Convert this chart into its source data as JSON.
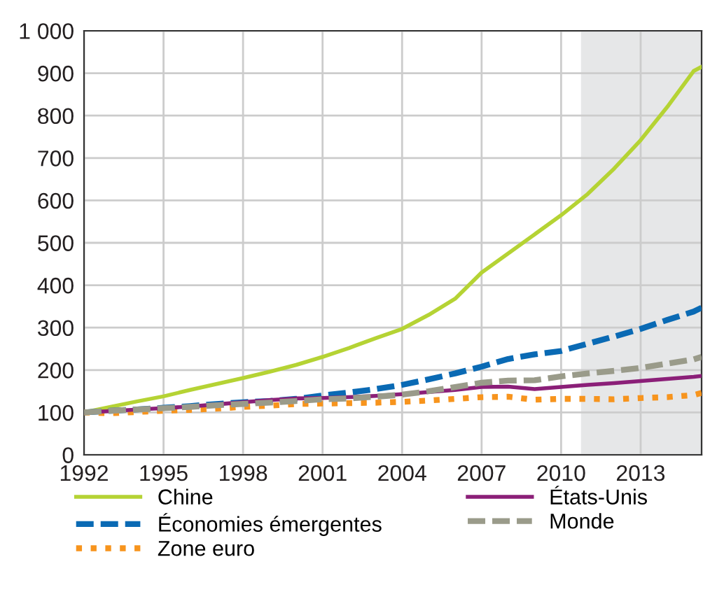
{
  "chart_data": {
    "type": "line",
    "x": [
      1992,
      1993,
      1994,
      1995,
      1996,
      1997,
      1998,
      1999,
      2000,
      2001,
      2002,
      2003,
      2004,
      2005,
      2006,
      2007,
      2008,
      2009,
      2010,
      2011,
      2012,
      2013,
      2014,
      2015,
      2015.3
    ],
    "series": [
      {
        "name": "Chine",
        "color": "#b5d334",
        "line_style": "solid",
        "values": [
          100,
          113,
          126,
          138,
          153,
          167,
          181,
          196,
          212,
          231,
          252,
          275,
          297,
          330,
          368,
          430,
          475,
          520,
          565,
          615,
          675,
          742,
          820,
          905,
          915
        ]
      },
      {
        "name": "Économies émergentes",
        "color": "#0a6ab4",
        "line_style": "dashed",
        "values": [
          100,
          104,
          107,
          111,
          115,
          120,
          124,
          127,
          132,
          140,
          147,
          155,
          165,
          178,
          192,
          208,
          226,
          237,
          245,
          262,
          279,
          297,
          318,
          338,
          347
        ]
      },
      {
        "name": "Zone euro",
        "color": "#f7941d",
        "line_style": "dotted",
        "values": [
          100,
          98,
          101,
          104,
          106,
          109,
          113,
          116,
          120,
          121,
          122,
          123,
          125,
          128,
          132,
          136,
          137,
          130,
          132,
          132,
          131,
          134,
          136,
          141,
          146
        ]
      },
      {
        "name": "États-Unis",
        "color": "#8b1f78",
        "line_style": "solid",
        "values": [
          100,
          103,
          107,
          110,
          114,
          119,
          124,
          129,
          133,
          134,
          136,
          139,
          143,
          148,
          153,
          160,
          161,
          155,
          160,
          165,
          169,
          174,
          179,
          184,
          186
        ]
      },
      {
        "name": "Monde",
        "color": "#9a9b8a",
        "line_style": "dashed",
        "values": [
          100,
          104,
          107,
          110,
          113,
          117,
          120,
          123,
          127,
          131,
          133,
          137,
          142,
          150,
          160,
          170,
          175,
          176,
          185,
          192,
          198,
          205,
          215,
          225,
          231
        ]
      }
    ],
    "xlim": [
      1992,
      2015.3
    ],
    "xticks": [
      1992,
      1995,
      1998,
      2001,
      2004,
      2007,
      2010,
      2013
    ],
    "ylim": [
      0,
      1000
    ],
    "yticks": [
      0,
      100,
      200,
      300,
      400,
      500,
      600,
      700,
      800,
      900,
      {
        "value": 1000,
        "label": "1 000"
      }
    ],
    "bands": [
      {
        "axis": "x",
        "from": 2010.75,
        "to": 2015.3,
        "color": "#e6e7e8"
      }
    ],
    "grid": true,
    "legend": "bottom",
    "marker": "none"
  }
}
